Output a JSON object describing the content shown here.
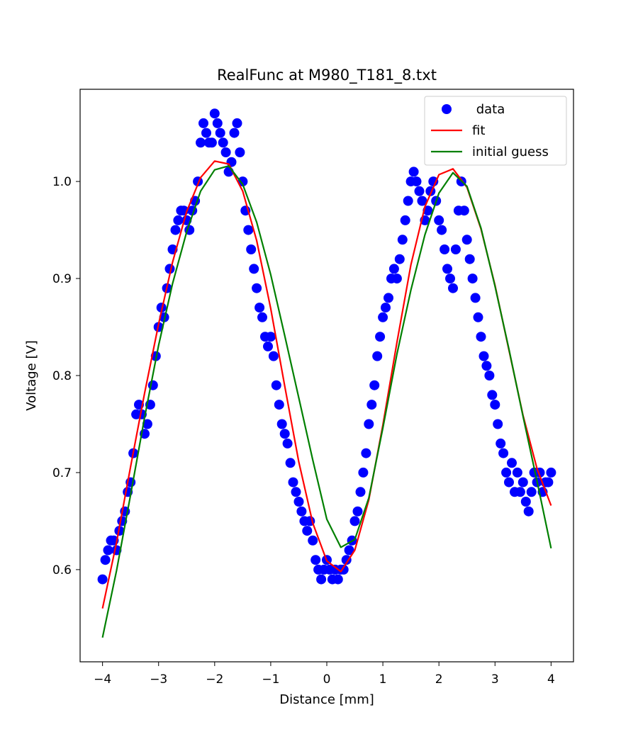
{
  "chart_data": {
    "type": "scatter",
    "title": "RealFunc at M980_T181_8.txt",
    "xlabel": "Distance [mm]",
    "ylabel": "Voltage [V]",
    "xlim": [
      -4.4,
      4.4
    ],
    "ylim": [
      0.505,
      1.095
    ],
    "x_ticks": [
      -4,
      -3,
      -2,
      -1,
      0,
      1,
      2,
      3,
      4
    ],
    "x_tick_labels": [
      "−4",
      "−3",
      "−2",
      "−1",
      "0",
      "1",
      "2",
      "3",
      "4"
    ],
    "y_ticks": [
      0.6,
      0.7,
      0.8,
      0.9,
      1.0
    ],
    "y_tick_labels": [
      "0.6",
      "0.7",
      "0.8",
      "0.9",
      "1.0"
    ],
    "grid": false,
    "legend_position": "top-right",
    "series": [
      {
        "name": " data",
        "kind": "scatter",
        "color": "#0000ff",
        "x": [
          -4.0,
          -3.95,
          -3.9,
          -3.85,
          -3.8,
          -3.75,
          -3.7,
          -3.65,
          -3.6,
          -3.55,
          -3.5,
          -3.45,
          -3.4,
          -3.35,
          -3.3,
          -3.25,
          -3.2,
          -3.15,
          -3.1,
          -3.05,
          -3.0,
          -2.95,
          -2.9,
          -2.85,
          -2.8,
          -2.75,
          -2.7,
          -2.65,
          -2.6,
          -2.55,
          -2.5,
          -2.45,
          -2.4,
          -2.35,
          -2.3,
          -2.25,
          -2.2,
          -2.15,
          -2.1,
          -2.05,
          -2.0,
          -1.95,
          -1.9,
          -1.85,
          -1.8,
          -1.75,
          -1.7,
          -1.65,
          -1.6,
          -1.55,
          -1.5,
          -1.45,
          -1.4,
          -1.35,
          -1.3,
          -1.25,
          -1.2,
          -1.15,
          -1.1,
          -1.05,
          -1.0,
          -0.95,
          -0.9,
          -0.85,
          -0.8,
          -0.75,
          -0.7,
          -0.65,
          -0.6,
          -0.55,
          -0.5,
          -0.45,
          -0.4,
          -0.35,
          -0.3,
          -0.25,
          -0.2,
          -0.15,
          -0.1,
          -0.05,
          0.0,
          0.05,
          0.1,
          0.15,
          0.2,
          0.25,
          0.3,
          0.35,
          0.4,
          0.45,
          0.5,
          0.55,
          0.6,
          0.65,
          0.7,
          0.75,
          0.8,
          0.85,
          0.9,
          0.95,
          1.0,
          1.05,
          1.1,
          1.15,
          1.2,
          1.25,
          1.3,
          1.35,
          1.4,
          1.45,
          1.5,
          1.55,
          1.6,
          1.65,
          1.7,
          1.75,
          1.8,
          1.85,
          1.9,
          1.95,
          2.0,
          2.05,
          2.1,
          2.15,
          2.2,
          2.25,
          2.3,
          2.35,
          2.4,
          2.45,
          2.5,
          2.55,
          2.6,
          2.65,
          2.7,
          2.75,
          2.8,
          2.85,
          2.9,
          2.95,
          3.0,
          3.05,
          3.1,
          3.15,
          3.2,
          3.25,
          3.3,
          3.35,
          3.4,
          3.45,
          3.5,
          3.55,
          3.6,
          3.65,
          3.7,
          3.75,
          3.8,
          3.85,
          3.9,
          3.95,
          4.0
        ],
        "y": [
          0.59,
          0.61,
          0.62,
          0.63,
          0.63,
          0.62,
          0.64,
          0.65,
          0.66,
          0.68,
          0.69,
          0.72,
          0.76,
          0.77,
          0.76,
          0.74,
          0.75,
          0.77,
          0.79,
          0.82,
          0.85,
          0.87,
          0.86,
          0.89,
          0.91,
          0.93,
          0.95,
          0.96,
          0.97,
          0.97,
          0.96,
          0.95,
          0.97,
          0.98,
          1.0,
          1.04,
          1.06,
          1.05,
          1.04,
          1.04,
          1.07,
          1.06,
          1.05,
          1.04,
          1.03,
          1.01,
          1.02,
          1.05,
          1.06,
          1.03,
          1.0,
          0.97,
          0.95,
          0.93,
          0.91,
          0.89,
          0.87,
          0.86,
          0.84,
          0.83,
          0.84,
          0.82,
          0.79,
          0.77,
          0.75,
          0.74,
          0.73,
          0.71,
          0.69,
          0.68,
          0.67,
          0.66,
          0.65,
          0.64,
          0.65,
          0.63,
          0.61,
          0.6,
          0.59,
          0.6,
          0.61,
          0.6,
          0.59,
          0.6,
          0.59,
          0.6,
          0.6,
          0.61,
          0.62,
          0.63,
          0.65,
          0.66,
          0.68,
          0.7,
          0.72,
          0.75,
          0.77,
          0.79,
          0.82,
          0.84,
          0.86,
          0.87,
          0.88,
          0.9,
          0.91,
          0.9,
          0.92,
          0.94,
          0.96,
          0.98,
          1.0,
          1.01,
          1.0,
          0.99,
          0.98,
          0.96,
          0.97,
          0.99,
          1.0,
          0.98,
          0.96,
          0.95,
          0.93,
          0.91,
          0.9,
          0.89,
          0.93,
          0.97,
          1.0,
          0.97,
          0.94,
          0.92,
          0.9,
          0.88,
          0.86,
          0.84,
          0.82,
          0.81,
          0.8,
          0.78,
          0.77,
          0.75,
          0.73,
          0.72,
          0.7,
          0.69,
          0.71,
          0.68,
          0.7,
          0.68,
          0.69,
          0.67,
          0.66,
          0.68,
          0.7,
          0.69,
          0.7,
          0.68,
          0.69,
          0.69,
          0.7
        ]
      },
      {
        "name": "fit",
        "kind": "line",
        "color": "#ff0000",
        "x": [
          -4.0,
          -3.75,
          -3.5,
          -3.25,
          -3.0,
          -2.75,
          -2.5,
          -2.25,
          -2.0,
          -1.75,
          -1.5,
          -1.25,
          -1.0,
          -0.75,
          -0.5,
          -0.25,
          0.0,
          0.25,
          0.5,
          0.75,
          1.0,
          1.25,
          1.5,
          1.75,
          2.0,
          2.25,
          2.5,
          2.75,
          3.0,
          3.25,
          3.5,
          3.75,
          4.0
        ],
        "y": [
          0.56,
          0.628,
          0.706,
          0.782,
          0.853,
          0.917,
          0.969,
          1.004,
          1.021,
          1.018,
          0.99,
          0.939,
          0.869,
          0.789,
          0.711,
          0.648,
          0.609,
          0.598,
          0.62,
          0.672,
          0.749,
          0.834,
          0.914,
          0.974,
          1.007,
          1.013,
          0.994,
          0.951,
          0.893,
          0.826,
          0.759,
          0.704,
          0.666
        ]
      },
      {
        "name": "initial guess",
        "kind": "line",
        "color": "#008000",
        "x": [
          -4.0,
          -3.75,
          -3.5,
          -3.25,
          -3.0,
          -2.75,
          -2.5,
          -2.25,
          -2.0,
          -1.75,
          -1.5,
          -1.25,
          -1.0,
          -0.75,
          -0.5,
          -0.25,
          0.0,
          0.25,
          0.5,
          0.75,
          1.0,
          1.25,
          1.5,
          1.75,
          2.0,
          2.25,
          2.5,
          2.75,
          3.0,
          3.25,
          3.5,
          3.75,
          4.0
        ],
        "y": [
          0.53,
          0.599,
          0.677,
          0.757,
          0.831,
          0.895,
          0.948,
          0.99,
          1.012,
          1.016,
          0.997,
          0.958,
          0.904,
          0.841,
          0.777,
          0.713,
          0.652,
          0.623,
          0.631,
          0.674,
          0.746,
          0.822,
          0.888,
          0.945,
          0.988,
          1.009,
          0.995,
          0.952,
          0.892,
          0.827,
          0.758,
          0.691,
          0.622
        ]
      }
    ]
  }
}
